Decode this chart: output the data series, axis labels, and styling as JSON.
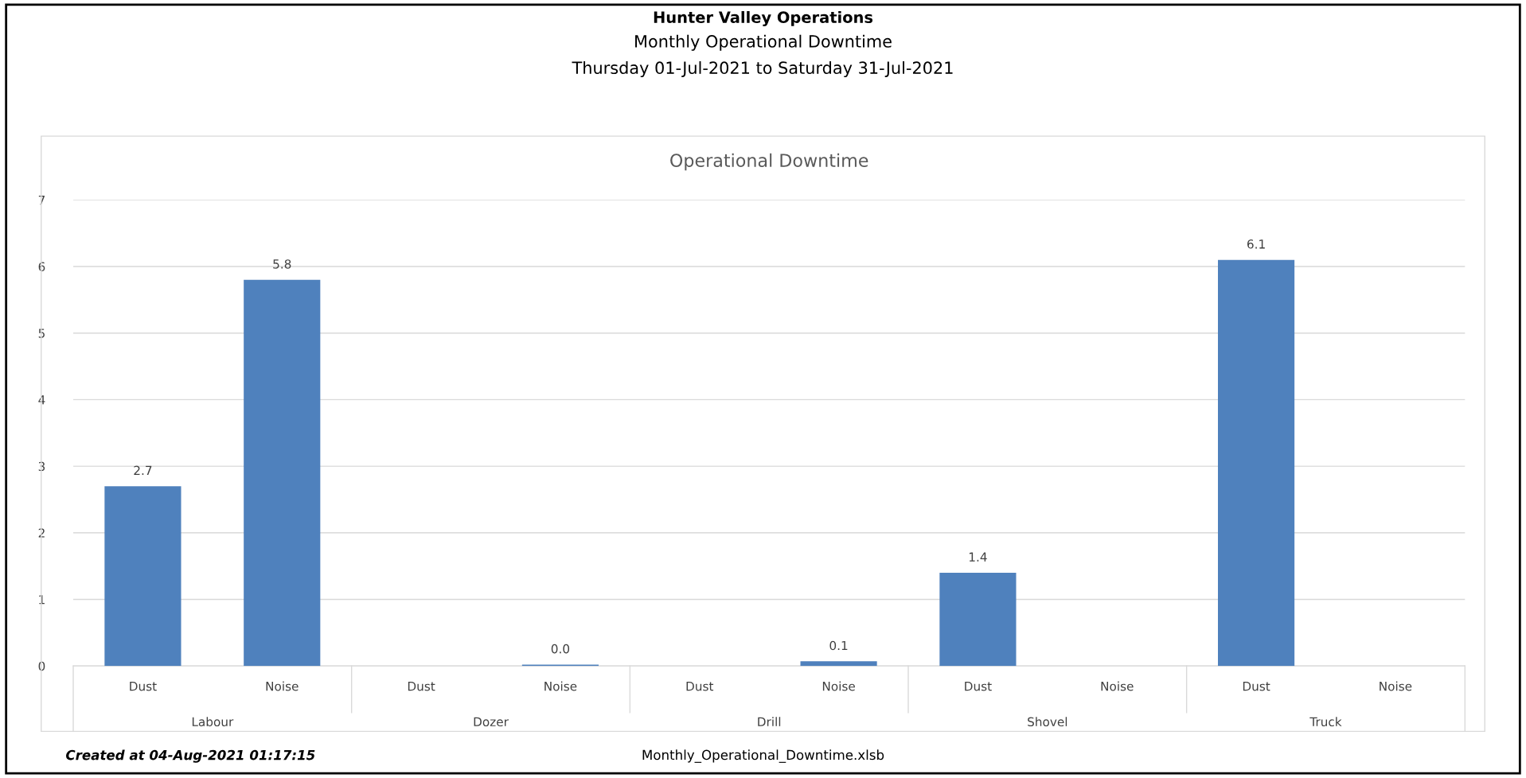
{
  "chart_data": {
    "type": "bar",
    "title": "Operational Downtime",
    "categories": [
      "Dust",
      "Noise",
      "Dust",
      "Noise",
      "Dust",
      "Noise",
      "Dust",
      "Noise",
      "Dust",
      "Noise"
    ],
    "values": [
      2.7,
      5.8,
      null,
      0.02,
      null,
      0.07,
      1.4,
      null,
      6.1,
      null
    ],
    "value_labels": [
      "2.7",
      "5.8",
      null,
      "0.0",
      null,
      "0.1",
      "1.4",
      null,
      "6.1",
      null
    ],
    "color": "#4f81bd",
    "ylim": [
      0,
      7
    ],
    "yticks": [
      0,
      1,
      2,
      3,
      4,
      5,
      6,
      7
    ],
    "grid": "y",
    "annotations": [
      "Hunter Valley Operations",
      "Monthly Operational Downtime",
      "Thursday 01-Jul-2021 to Saturday 31-Jul-2021",
      "Created at 04-Aug-2021 01:17:15",
      "Monthly_Operational_Downtime.xlsb",
      "Labour",
      "Dozer",
      "Drill",
      "Shovel",
      "Truck"
    ]
  }
}
